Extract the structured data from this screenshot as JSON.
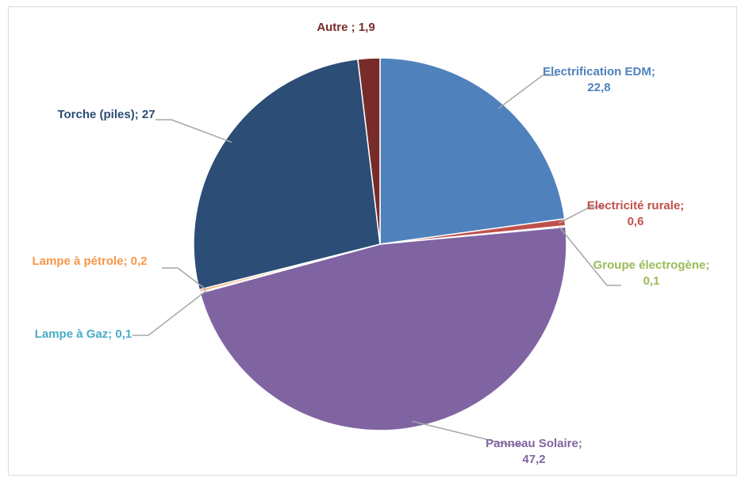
{
  "chart_data": {
    "type": "pie",
    "title": "",
    "slices": [
      {
        "name": "Electrification EDM",
        "value": 22.8,
        "label_line1": "Electrification EDM;",
        "label_line2": "22,8",
        "color": "#4f81bd"
      },
      {
        "name": "Electricité rurale",
        "value": 0.6,
        "label_line1": "Electricité rurale;",
        "label_line2": "0,6",
        "color": "#c0504d"
      },
      {
        "name": "Groupe électrogène",
        "value": 0.1,
        "label_line1": "Groupe électrogène;",
        "label_line2": "0,1",
        "color": "#9bbb59"
      },
      {
        "name": "Panneau Solaire",
        "value": 47.2,
        "label_line1": "Panneau Solaire;",
        "label_line2": "47,2",
        "color": "#8064a2"
      },
      {
        "name": "Lampe à Gaz",
        "value": 0.1,
        "label_line1": "Lampe à Gaz; 0,1",
        "label_line2": "",
        "color": "#4bacc6"
      },
      {
        "name": "Lampe à pétrole",
        "value": 0.2,
        "label_line1": "Lampe à pétrole; 0,2",
        "label_line2": "",
        "color": "#f79646"
      },
      {
        "name": "Torche (piles)",
        "value": 27,
        "label_line1": "Torche (piles); 27",
        "label_line2": "",
        "color": "#2c4d75"
      },
      {
        "name": "Autre",
        "value": 1.9,
        "label_line1": "Autre ; 1,9",
        "label_line2": "",
        "color": "#772c2a"
      }
    ],
    "start_angle_deg": 0,
    "direction": "clockwise",
    "legend": "none",
    "leader_line_color": "#a6a6a6"
  }
}
